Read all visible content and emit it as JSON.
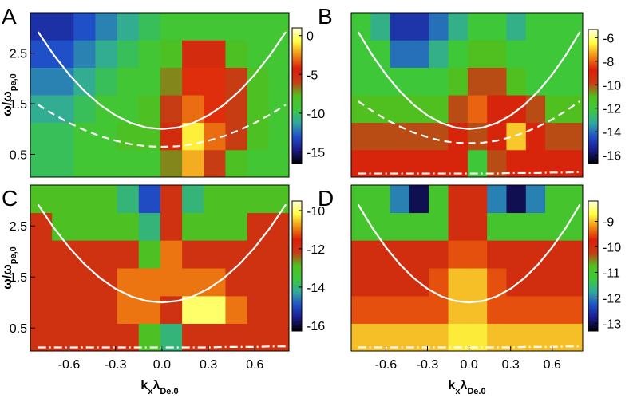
{
  "colormap": [
    "#000000",
    "#1a1a8c",
    "#2050c8",
    "#30a8a0",
    "#3cc83c",
    "#50c020",
    "#c83c14",
    "#dc1e0a",
    "#f08c14",
    "#ffff40",
    "#ffffe0"
  ],
  "chart_data": [
    {
      "type": "heatmap",
      "label": "A",
      "ylabel": [
        "ω/ω",
        "pe,0"
      ],
      "x": [
        -0.78,
        -0.64,
        -0.5,
        -0.36,
        -0.22,
        -0.08,
        0.06,
        0.2,
        0.34,
        0.48,
        0.62,
        0.76
      ],
      "y": [
        0.32,
        0.86,
        1.4,
        1.95,
        2.49,
        3.03
      ],
      "values": [
        [
          -10,
          -10,
          -9,
          -9,
          -9,
          -9,
          -7,
          -2,
          -6,
          -8,
          -9,
          -9
        ],
        [
          -10,
          -10,
          -9,
          -9,
          -8,
          -8,
          -5,
          -1,
          -3,
          -6,
          -8,
          -9
        ],
        [
          -11,
          -11,
          -10,
          -9,
          -9,
          -8,
          -6,
          -3,
          -4,
          -6,
          -8,
          -9
        ],
        [
          -12,
          -12,
          -11,
          -10,
          -9,
          -9,
          -7,
          -4,
          -4,
          -6,
          -8,
          -9
        ],
        [
          -13,
          -13,
          -12,
          -11,
          -10,
          -9,
          -8,
          -5,
          -5,
          -8,
          -9,
          -9
        ],
        [
          -14,
          -14,
          -13,
          -12,
          -11,
          -10,
          -9,
          -9,
          -9,
          -9,
          -9,
          -9
        ]
      ],
      "clim": [
        -16.5,
        1
      ],
      "cticks": [
        0,
        -5,
        -10,
        -15
      ],
      "xlim": [
        -0.85,
        0.82
      ],
      "ylim": [
        0.05,
        3.3
      ],
      "yticks": [
        0.5,
        1.5,
        2.5
      ],
      "curves": {
        "x": [
          -0.8,
          -0.7,
          -0.6,
          -0.5,
          -0.4,
          -0.3,
          -0.2,
          -0.1,
          0,
          0.1,
          0.2,
          0.3,
          0.4,
          0.5,
          0.6,
          0.7,
          0.8
        ],
        "series": [
          {
            "style": "solid",
            "color": "#ffffff",
            "values": [
              2.92,
              2.47,
              2.08,
              1.75,
              1.48,
              1.27,
              1.12,
              1.03,
              1.0,
              1.03,
              1.12,
              1.27,
              1.48,
              1.75,
              2.08,
              2.47,
              2.92
            ]
          },
          {
            "style": "dashed",
            "color": "#ffffff",
            "values": [
              1.48,
              1.29,
              1.12,
              0.98,
              0.86,
              0.77,
              0.7,
              0.66,
              0.65,
              0.66,
              0.7,
              0.77,
              0.86,
              0.98,
              1.12,
              1.29,
              1.48
            ]
          }
        ]
      }
    },
    {
      "type": "heatmap",
      "label": "B",
      "x": [
        -0.78,
        -0.64,
        -0.5,
        -0.36,
        -0.22,
        -0.08,
        0.06,
        0.2,
        0.34,
        0.48,
        0.62,
        0.76
      ],
      "y": [
        0.32,
        0.86,
        1.4,
        1.95,
        2.49,
        3.03
      ],
      "values": [
        [
          -9,
          -9,
          -9,
          -9,
          -9,
          -9,
          -12,
          -10,
          -9,
          -9,
          -9,
          -9
        ],
        [
          -10,
          -10,
          -10,
          -10,
          -10,
          -9,
          -10,
          -9,
          -7,
          -9,
          -10,
          -10
        ],
        [
          -11,
          -11,
          -11,
          -11,
          -11,
          -10,
          -8,
          -9,
          -9,
          -10,
          -11,
          -11
        ],
        [
          -12,
          -12,
          -12,
          -12,
          -12,
          -11,
          -10,
          -10,
          -11,
          -12,
          -12,
          -12
        ],
        [
          -12,
          -12,
          -14,
          -14,
          -13,
          -12,
          -11,
          -11,
          -12,
          -12,
          -12,
          -12
        ],
        [
          -12,
          -13,
          -15,
          -15,
          -14,
          -13,
          -12,
          -12,
          -13,
          -12,
          -12,
          -12
        ]
      ],
      "clim": [
        -16.7,
        -5.3
      ],
      "cticks": [
        -6,
        -8,
        -10,
        -12,
        -14,
        -16
      ],
      "xlim": [
        -0.85,
        0.82
      ],
      "ylim": [
        0.05,
        3.3
      ],
      "curves": {
        "x": [
          -0.8,
          -0.7,
          -0.6,
          -0.5,
          -0.4,
          -0.3,
          -0.2,
          -0.1,
          0,
          0.1,
          0.2,
          0.3,
          0.4,
          0.5,
          0.6,
          0.7,
          0.8
        ],
        "series": [
          {
            "style": "solid",
            "color": "#ffffff",
            "values": [
              2.92,
              2.47,
              2.08,
              1.75,
              1.48,
              1.27,
              1.12,
              1.03,
              1.0,
              1.03,
              1.12,
              1.27,
              1.48,
              1.75,
              2.08,
              2.47,
              2.92
            ]
          },
          {
            "style": "dashed",
            "color": "#ffffff",
            "values": [
              1.55,
              1.36,
              1.19,
              1.05,
              0.93,
              0.84,
              0.77,
              0.73,
              0.72,
              0.73,
              0.77,
              0.84,
              0.93,
              1.05,
              1.19,
              1.36,
              1.55
            ]
          },
          {
            "style": "dashdot",
            "color": "#ffffff",
            "values": [
              0.12,
              0.12,
              0.12,
              0.12,
              0.12,
              0.12,
              0.12,
              0.12,
              0.12,
              0.12,
              0.12,
              0.13,
              0.13,
              0.13,
              0.14,
              0.14,
              0.15
            ]
          }
        ]
      }
    },
    {
      "type": "heatmap",
      "label": "C",
      "ylabel": [
        "ω/ω",
        "pe,0"
      ],
      "xlabel": [
        "k",
        "x",
        "λ",
        "De,0"
      ],
      "x": [
        -0.78,
        -0.64,
        -0.5,
        -0.36,
        -0.22,
        -0.08,
        0.06,
        0.2,
        0.34,
        0.48,
        0.62,
        0.76
      ],
      "y": [
        0.32,
        0.86,
        1.4,
        1.95,
        2.49,
        3.03
      ],
      "values": [
        [
          -12,
          -12,
          -12,
          -12,
          -12,
          -13,
          -14,
          -12,
          -12,
          -12,
          -12,
          -12
        ],
        [
          -12,
          -12,
          -12,
          -12,
          -11,
          -11,
          -12,
          -10,
          -10,
          -11,
          -12,
          -12
        ],
        [
          -12,
          -12,
          -12,
          -12,
          -11,
          -11,
          -11,
          -11,
          -11,
          -12,
          -12,
          -12
        ],
        [
          -12,
          -12,
          -12,
          -12,
          -12,
          -13,
          -11,
          -12,
          -12,
          -12,
          -12,
          -12
        ],
        [
          -12,
          -13,
          -13,
          -13,
          -13,
          -14,
          -12,
          -13,
          -13,
          -13,
          -12,
          -12
        ],
        [
          -13,
          -13,
          -13,
          -13,
          -14,
          -15,
          -12,
          -14,
          -13,
          -13,
          -13,
          -13
        ]
      ],
      "clim": [
        -16.3,
        -9.5
      ],
      "cticks": [
        -10,
        -12,
        -14,
        -16
      ],
      "xlim": [
        -0.85,
        0.82
      ],
      "ylim": [
        0.05,
        3.3
      ],
      "yticks": [
        0.5,
        1.5,
        2.5
      ],
      "xticks": [
        -0.6,
        -0.3,
        {
          "value": 0,
          "label": "0.0"
        },
        0.3,
        0.6
      ],
      "curves": {
        "x": [
          -0.8,
          -0.7,
          -0.6,
          -0.5,
          -0.4,
          -0.3,
          -0.2,
          -0.1,
          0,
          0.1,
          0.2,
          0.3,
          0.4,
          0.5,
          0.6,
          0.7,
          0.8
        ],
        "series": [
          {
            "style": "solid",
            "color": "#ffffff",
            "values": [
              2.92,
              2.47,
              2.08,
              1.75,
              1.48,
              1.27,
              1.12,
              1.03,
              1.0,
              1.03,
              1.12,
              1.27,
              1.48,
              1.75,
              2.08,
              2.47,
              2.92
            ]
          },
          {
            "style": "dashdot",
            "color": "#ffffff",
            "values": [
              0.12,
              0.12,
              0.12,
              0.12,
              0.12,
              0.12,
              0.12,
              0.12,
              0.12,
              0.12,
              0.12,
              0.12,
              0.13,
              0.13,
              0.13,
              0.14,
              0.14
            ]
          }
        ]
      }
    },
    {
      "type": "heatmap",
      "label": "D",
      "xlabel": [
        "k",
        "x",
        "λ",
        "De,0"
      ],
      "x": [
        -0.78,
        -0.64,
        -0.5,
        -0.36,
        -0.22,
        -0.08,
        0.06,
        0.2,
        0.34,
        0.48,
        0.62,
        0.76
      ],
      "y": [
        0.32,
        0.86,
        1.4,
        1.95,
        2.49,
        3.03
      ],
      "values": [
        [
          -9,
          -9,
          -9,
          -9,
          -9,
          -8.8,
          -8.8,
          -9,
          -9,
          -9,
          -9,
          -9
        ],
        [
          -9.5,
          -9.5,
          -9.5,
          -9.5,
          -9.5,
          -9,
          -9,
          -9.5,
          -9.5,
          -9.5,
          -9.5,
          -9.5
        ],
        [
          -10,
          -10,
          -10,
          -10,
          -9.5,
          -9,
          -9,
          -9.5,
          -10,
          -10,
          -10,
          -10
        ],
        [
          -10,
          -10,
          -10,
          -10,
          -10,
          -9.5,
          -9.5,
          -10,
          -10,
          -10,
          -10,
          -10
        ],
        [
          -11,
          -11,
          -11,
          -11,
          -11,
          -10,
          -10,
          -11,
          -11,
          -11,
          -11,
          -11
        ],
        [
          -11,
          -11,
          -12,
          -13,
          -11,
          -10,
          -10,
          -12,
          -13,
          -12,
          -11,
          -11
        ]
      ],
      "clim": [
        -13.3,
        -8.2
      ],
      "cticks": [
        -9,
        -10,
        -11,
        -12,
        -13
      ],
      "xlim": [
        -0.85,
        0.82
      ],
      "ylim": [
        0.05,
        3.3
      ],
      "xticks": [
        -0.6,
        -0.3,
        {
          "value": 0,
          "label": "0.0"
        },
        0.3,
        0.6
      ],
      "curves": {
        "x": [
          -0.8,
          -0.7,
          -0.6,
          -0.5,
          -0.4,
          -0.3,
          -0.2,
          -0.1,
          0,
          0.1,
          0.2,
          0.3,
          0.4,
          0.5,
          0.6,
          0.7,
          0.8
        ],
        "series": [
          {
            "style": "solid",
            "color": "#ffffff",
            "values": [
              2.92,
              2.47,
              2.08,
              1.75,
              1.48,
              1.27,
              1.12,
              1.03,
              1.0,
              1.03,
              1.12,
              1.27,
              1.48,
              1.75,
              2.08,
              2.47,
              2.92
            ]
          },
          {
            "style": "dashdot",
            "color": "#ffffff",
            "values": [
              0.12,
              0.12,
              0.12,
              0.12,
              0.12,
              0.12,
              0.12,
              0.12,
              0.12,
              0.12,
              0.12,
              0.12,
              0.13,
              0.13,
              0.13,
              0.14,
              0.14
            ]
          }
        ]
      }
    }
  ]
}
